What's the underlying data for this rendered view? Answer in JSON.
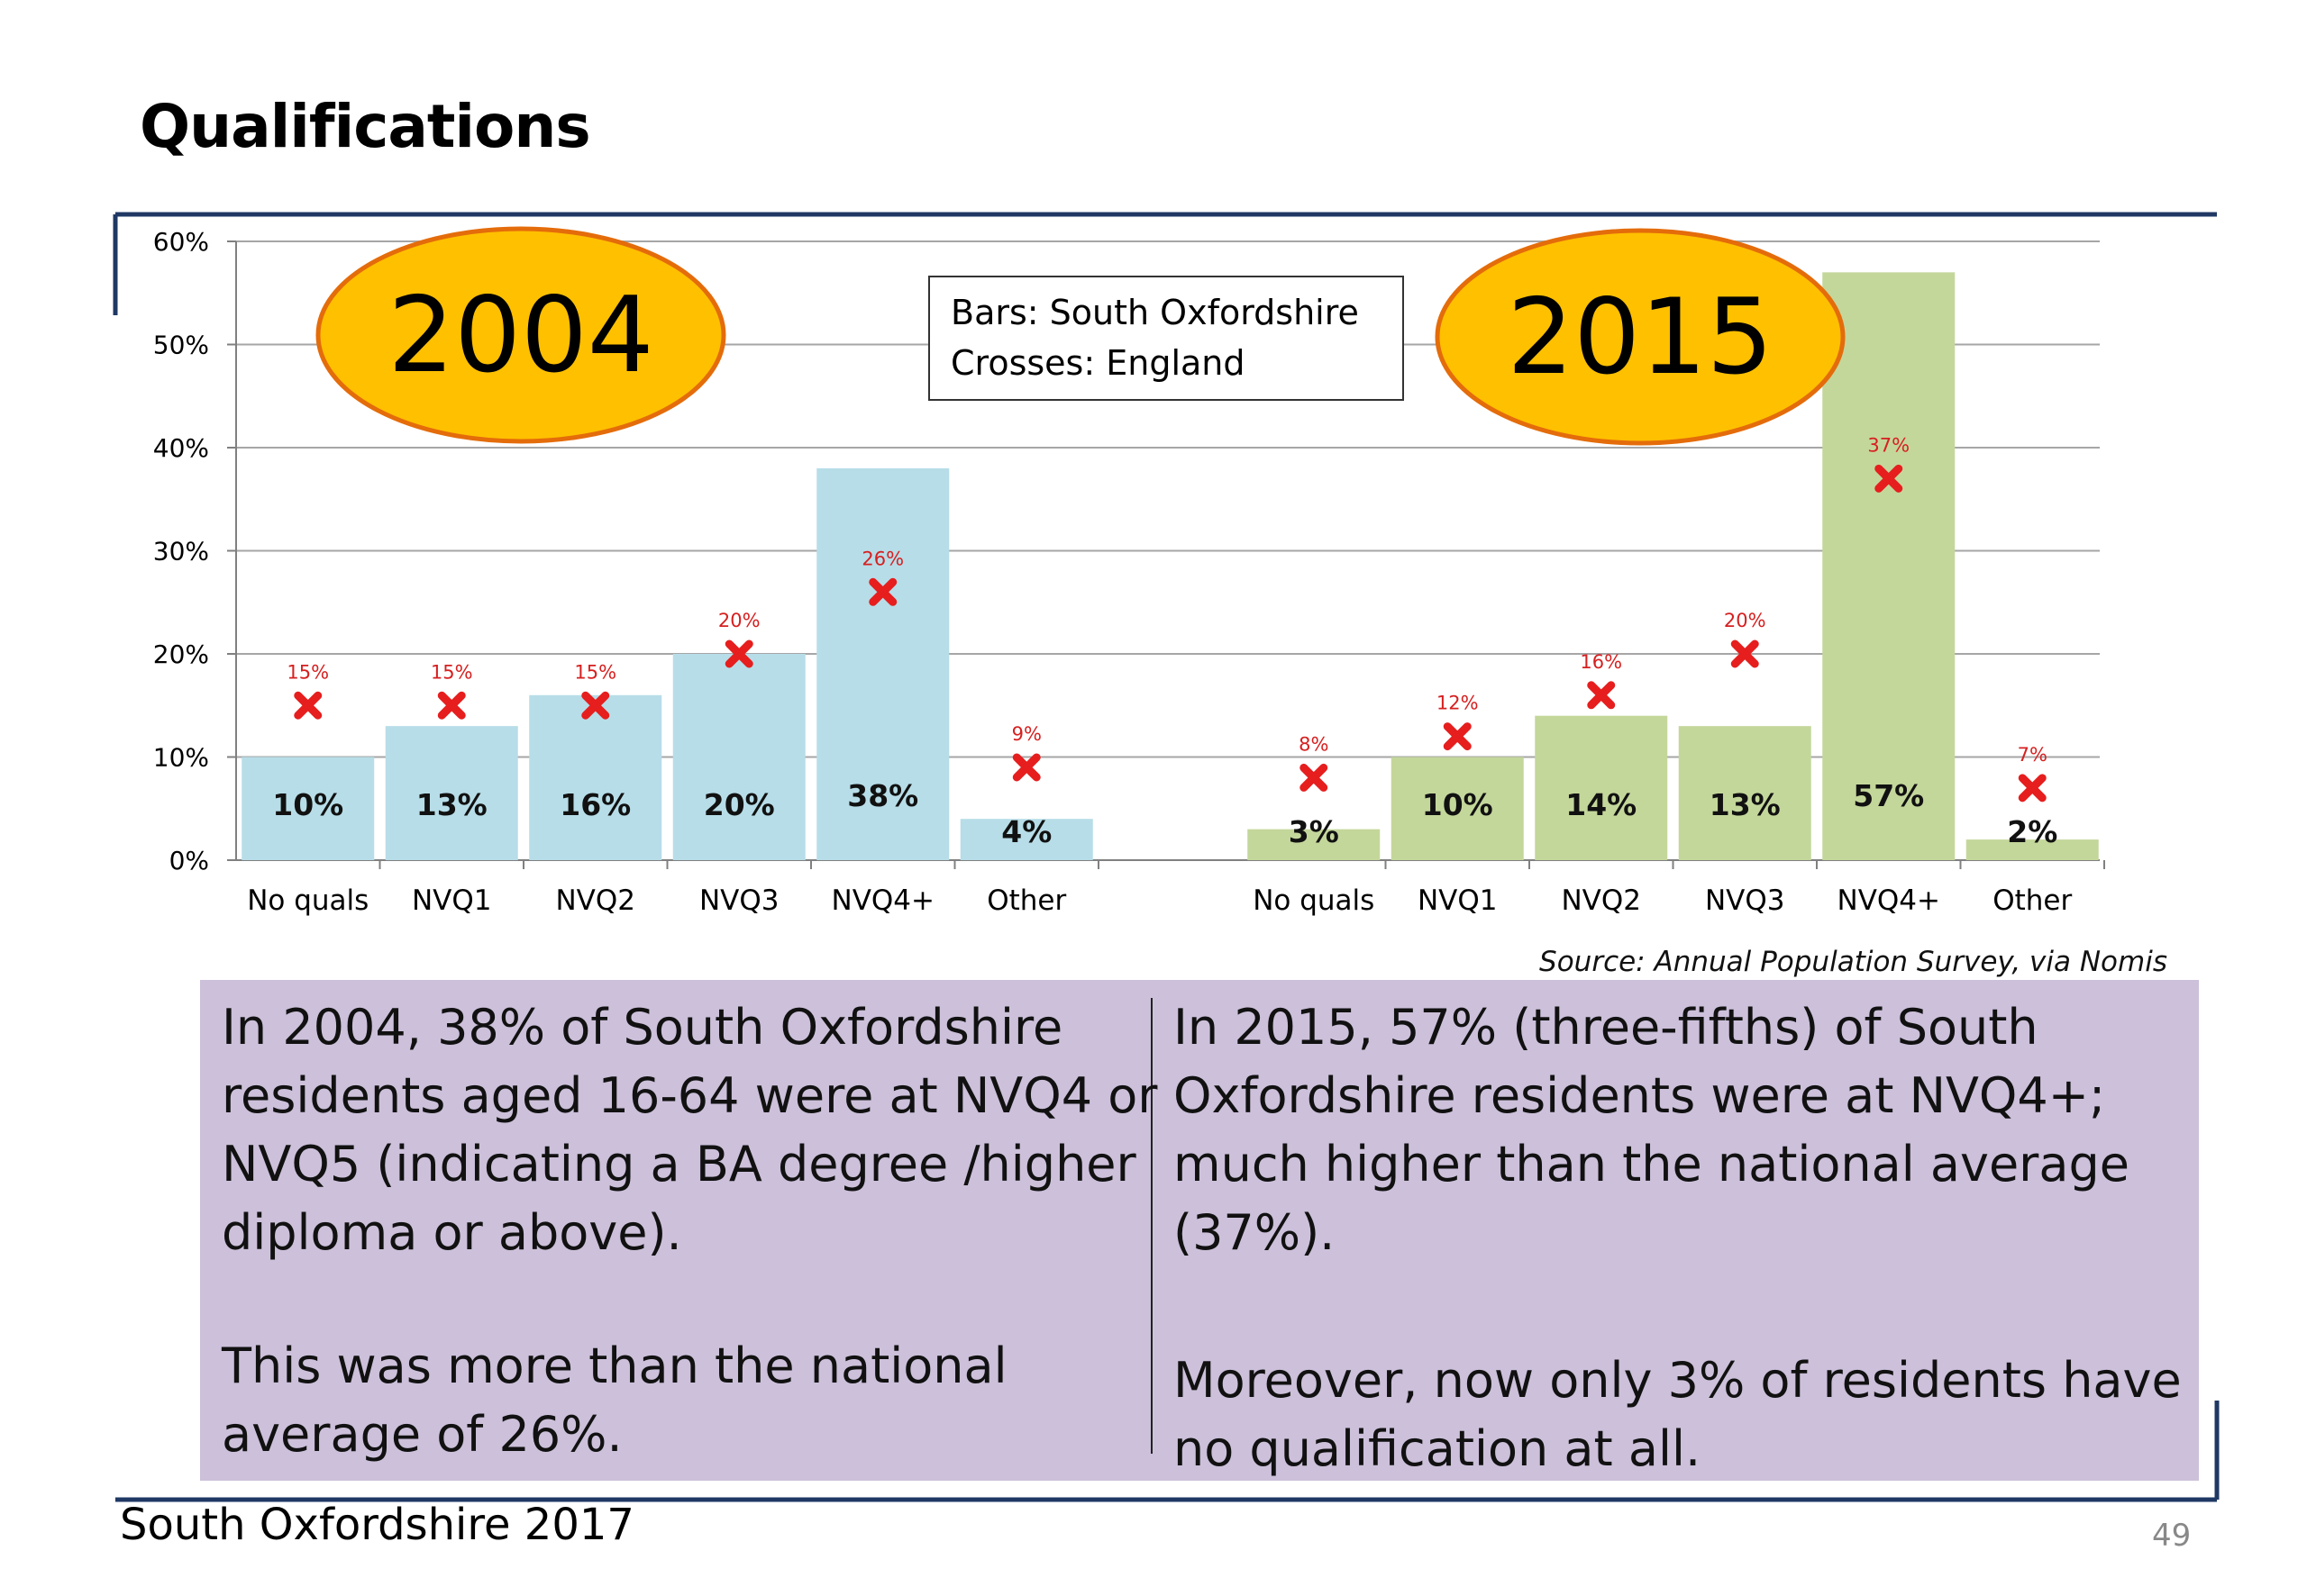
{
  "page": {
    "title": "Qualifications",
    "legend_box_line1": "Bars: South Oxfordshire",
    "legend_box_line2": "Crosses: England",
    "source": "Source: Annual Population Survey, via Nomis",
    "left_text_p1": "In 2004, 38% of South Oxfordshire\nresidents aged 16-64 were at NVQ4 or\nNVQ5 (indicating a BA degree /higher\ndiploma or above).",
    "left_text_p2": "This was more than the national\naverage of 26%.",
    "right_text_p1": "In 2015, 57% (three-fifths) of South\nOxfordshire residents were at NVQ4+;\nmuch higher than the national average\n(37%).",
    "right_text_p2": "Moreover, now only 3% of residents have\nno qualification at all.",
    "footer": "South Oxfordshire  2017",
    "page_number": "49"
  },
  "chart_data": {
    "type": "bar",
    "ylim": [
      0,
      60
    ],
    "yticks": [
      "0%",
      "10%",
      "20%",
      "30%",
      "40%",
      "50%",
      "60%"
    ],
    "grid": true,
    "groups": [
      {
        "label": "2004",
        "bar_color": "#b7dde8",
        "categories": [
          "No quals",
          "NVQ1",
          "NVQ2",
          "NVQ3",
          "NVQ4+",
          "Other"
        ],
        "south_oxfordshire": [
          10,
          13,
          16,
          20,
          38,
          4
        ],
        "south_oxfordshire_labels": [
          "10%",
          "13%",
          "16%",
          "20%",
          "38%",
          "4%"
        ],
        "england": [
          15,
          15,
          15,
          20,
          26,
          9
        ],
        "england_labels": [
          "15%",
          "15%",
          "15%",
          "20%",
          "26%",
          "9%"
        ]
      },
      {
        "label": "2015",
        "bar_color": "#c4d79b",
        "categories": [
          "No quals",
          "NVQ1",
          "NVQ2",
          "NVQ3",
          "NVQ4+",
          "Other"
        ],
        "south_oxfordshire": [
          3,
          10,
          14,
          13,
          57,
          2
        ],
        "south_oxfordshire_labels": [
          "3%",
          "10%",
          "14%",
          "13%",
          "57%",
          "2%"
        ],
        "england": [
          8,
          12,
          16,
          20,
          37,
          7
        ],
        "england_labels": [
          "8%",
          "12%",
          "16%",
          "20%",
          "37%",
          "7%"
        ]
      }
    ],
    "colors": {
      "cross": "#e61e1e",
      "cross_label": "#d62020",
      "ellipse_fill": "#ffc000",
      "ellipse_stroke": "#e46c0a",
      "frame": "#1f3864"
    }
  }
}
